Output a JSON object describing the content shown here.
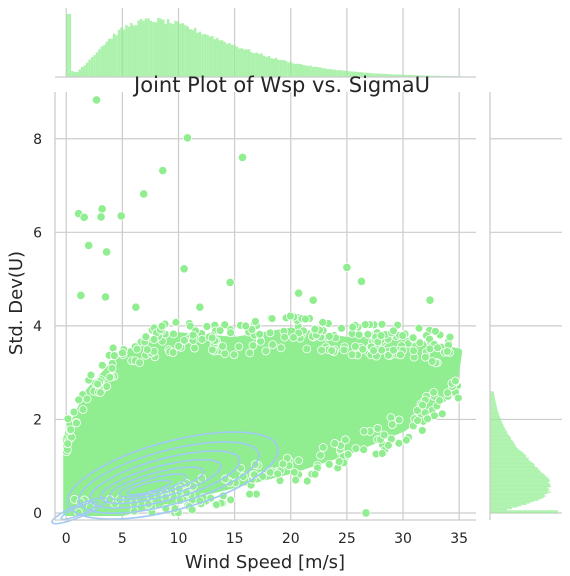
{
  "chart_data": {
    "type": "scatter",
    "title": "Joint Plot of Wsp vs. SigmaU",
    "xlabel": "Wind Speed [m/s]",
    "ylabel": "Std. Dev(U)",
    "xlim": [
      -1,
      36.5
    ],
    "ylim": [
      -0.15,
      9.0
    ],
    "xticks": [
      "0",
      "5",
      "10",
      "15",
      "20",
      "25",
      "30",
      "35"
    ],
    "xtick_values": [
      0,
      5,
      10,
      15,
      20,
      25,
      30,
      35
    ],
    "yticks": [
      "0",
      "2",
      "4",
      "6",
      "8"
    ],
    "ytick_values": [
      0,
      2,
      4,
      6,
      8
    ],
    "grid": true,
    "colors": {
      "scatter": "#90ee90",
      "kde": "#a1c9f4",
      "hist": "#90ee90",
      "grid": "#cccccc",
      "axis": "#cccccc"
    },
    "outlier_points": [
      {
        "x": 2.7,
        "y": 8.83
      },
      {
        "x": 10.8,
        "y": 8.02
      },
      {
        "x": 15.7,
        "y": 7.6
      },
      {
        "x": 8.6,
        "y": 7.32
      },
      {
        "x": 6.9,
        "y": 6.82
      },
      {
        "x": 1.1,
        "y": 6.4
      },
      {
        "x": 1.6,
        "y": 6.32
      },
      {
        "x": 3.2,
        "y": 6.5
      },
      {
        "x": 3.1,
        "y": 6.33
      },
      {
        "x": 4.9,
        "y": 6.35
      },
      {
        "x": 2.0,
        "y": 5.72
      },
      {
        "x": 3.6,
        "y": 5.58
      },
      {
        "x": 10.5,
        "y": 5.22
      },
      {
        "x": 25.0,
        "y": 5.25
      },
      {
        "x": 26.3,
        "y": 4.95
      },
      {
        "x": 14.6,
        "y": 4.93
      },
      {
        "x": 32.4,
        "y": 4.55
      },
      {
        "x": 22.0,
        "y": 4.55
      },
      {
        "x": 1.3,
        "y": 4.65
      },
      {
        "x": 3.5,
        "y": 4.62
      },
      {
        "x": 20.7,
        "y": 4.7
      },
      {
        "x": 11.9,
        "y": 4.4
      },
      {
        "x": 6.2,
        "y": 4.4
      },
      {
        "x": 26.7,
        "y": 0.0
      }
    ],
    "dense_region": {
      "upper_bound": [
        [
          0,
          1.6
        ],
        [
          2,
          2.6
        ],
        [
          5,
          3.4
        ],
        [
          10,
          3.8
        ],
        [
          15,
          3.7
        ],
        [
          20,
          3.9
        ],
        [
          25,
          3.7
        ],
        [
          30,
          3.7
        ],
        [
          35,
          3.45
        ]
      ],
      "lower_bound": [
        [
          0,
          0.0
        ],
        [
          5,
          0.0
        ],
        [
          10,
          0.3
        ],
        [
          15,
          0.6
        ],
        [
          20,
          0.9
        ],
        [
          25,
          1.3
        ],
        [
          30,
          1.8
        ],
        [
          34.5,
          2.6
        ]
      ]
    },
    "x_histogram_shape": "right-skewed, mode near 8-9 m/s, spike near 0",
    "y_histogram_shape": "right-skewed, mode near 0.5"
  }
}
